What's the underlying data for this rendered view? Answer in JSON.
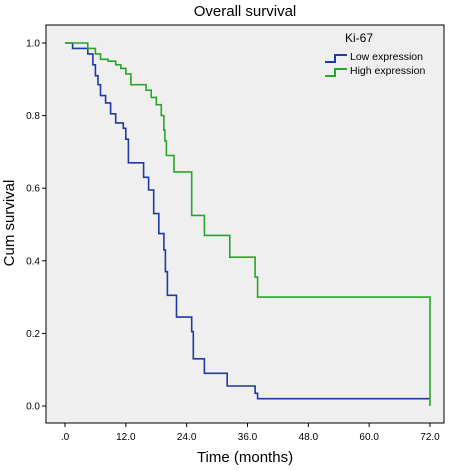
{
  "chart_data": {
    "type": "line",
    "title": "Overall survival",
    "xlabel": "Time (months)",
    "ylabel": "Cum survival",
    "xlim": [
      0,
      72
    ],
    "ylim": [
      0,
      1
    ],
    "x_ticks": [
      ".0",
      "12.0",
      "24.0",
      "36.0",
      "48.0",
      "60.0",
      "72.0"
    ],
    "x_tick_values": [
      0,
      12,
      24,
      36,
      48,
      60,
      72
    ],
    "y_ticks": [
      "0.0",
      "0.2",
      "0.4",
      "0.6",
      "0.8",
      "1.0"
    ],
    "y_tick_values": [
      0,
      0.2,
      0.4,
      0.6,
      0.8,
      1.0
    ],
    "grid": false,
    "legend": {
      "title": "Ki-67",
      "placement": "top-right"
    },
    "series": [
      {
        "name": "Low expression",
        "color": "#1f3aa0",
        "step": true,
        "points": [
          [
            0,
            1.0
          ],
          [
            1.5,
            0.985
          ],
          [
            4.5,
            0.97
          ],
          [
            5.5,
            0.94
          ],
          [
            6,
            0.91
          ],
          [
            6.5,
            0.885
          ],
          [
            7,
            0.855
          ],
          [
            8,
            0.835
          ],
          [
            9,
            0.805
          ],
          [
            10,
            0.78
          ],
          [
            11.5,
            0.765
          ],
          [
            12,
            0.735
          ],
          [
            12.5,
            0.67
          ],
          [
            15.5,
            0.63
          ],
          [
            16.5,
            0.595
          ],
          [
            17.5,
            0.53
          ],
          [
            18.5,
            0.475
          ],
          [
            19.5,
            0.43
          ],
          [
            19.8,
            0.37
          ],
          [
            20.2,
            0.305
          ],
          [
            22,
            0.245
          ],
          [
            25,
            0.205
          ],
          [
            25.3,
            0.13
          ],
          [
            27.5,
            0.09
          ],
          [
            32,
            0.055
          ],
          [
            37.5,
            0.035
          ],
          [
            38,
            0.02
          ],
          [
            72,
            0.02
          ]
        ]
      },
      {
        "name": "High expression",
        "color": "#2aa52a",
        "step": true,
        "points": [
          [
            0,
            1.0
          ],
          [
            4.5,
            0.985
          ],
          [
            6,
            0.97
          ],
          [
            7,
            0.955
          ],
          [
            8.5,
            0.95
          ],
          [
            10,
            0.94
          ],
          [
            11,
            0.93
          ],
          [
            12,
            0.915
          ],
          [
            13,
            0.885
          ],
          [
            16,
            0.87
          ],
          [
            17,
            0.85
          ],
          [
            18,
            0.83
          ],
          [
            19,
            0.8
          ],
          [
            19.5,
            0.76
          ],
          [
            19.7,
            0.73
          ],
          [
            20,
            0.69
          ],
          [
            21.5,
            0.645
          ],
          [
            25,
            0.525
          ],
          [
            27.5,
            0.47
          ],
          [
            32.5,
            0.41
          ],
          [
            37.5,
            0.355
          ],
          [
            38,
            0.3
          ],
          [
            72,
            0.3
          ],
          [
            72,
            0.0
          ]
        ]
      }
    ]
  }
}
